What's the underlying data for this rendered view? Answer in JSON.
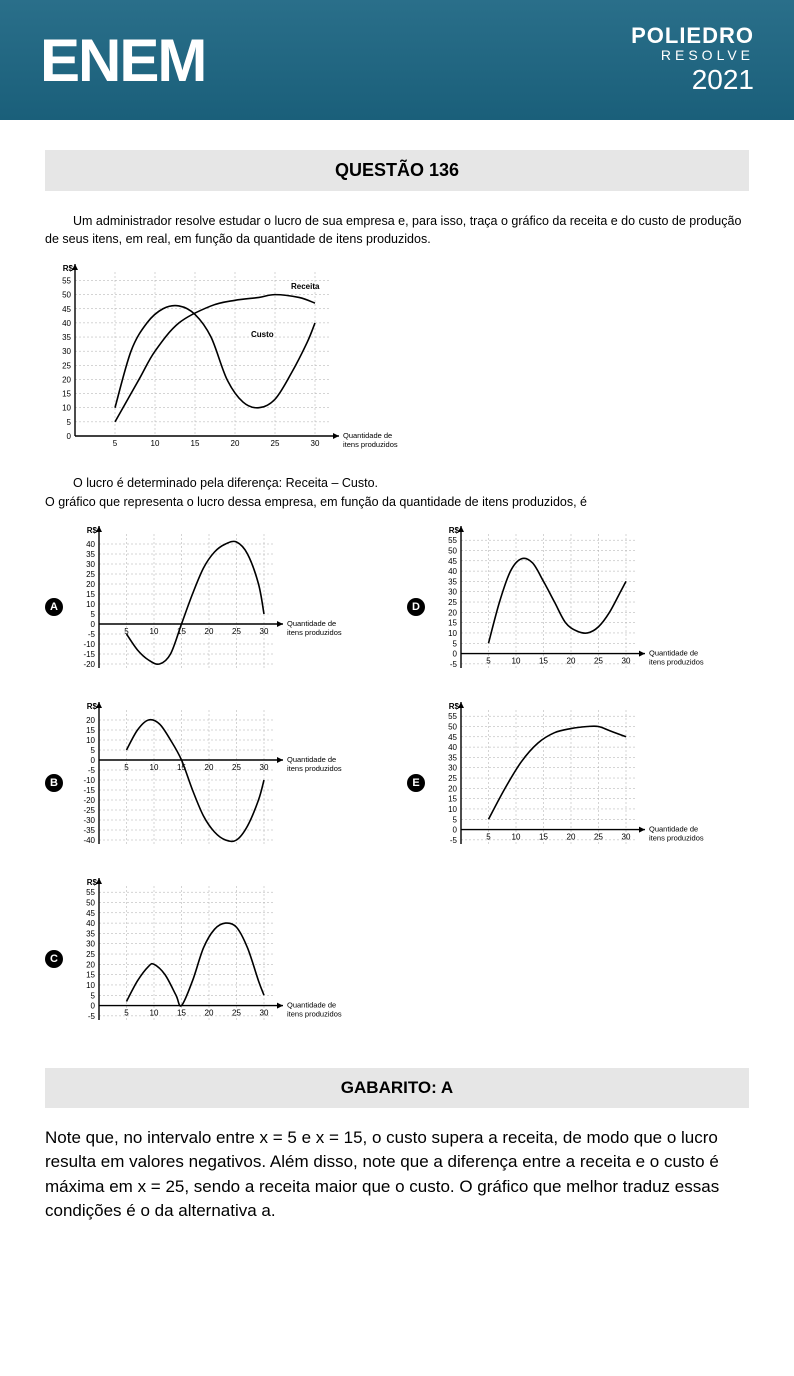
{
  "header": {
    "logo": "ENEM",
    "brand": "POLIEDRO",
    "sub": "RESOLVE",
    "year": "2021",
    "bg_color": "#1a5f7a"
  },
  "question": {
    "title": "QUESTÃO 136",
    "intro": "Um administrador resolve estudar o lucro de sua empresa e, para isso, traça o gráfico da receita e do custo de produção de seus itens, em real, em função da quantidade de itens produzidos.",
    "mid1": "O lucro é determinado pela diferença: Receita – Custo.",
    "mid2": "O gráfico que representa o lucro dessa empresa, em função da quantidade de itens produzidos, é",
    "gabarito": "GABARITO: A",
    "explanation": "Note que, no intervalo entre x = 5 e x = 15, o custo supera a receita, de modo que o lucro resulta em valores negativos. Além disso, note que a diferença entre a receita e o custo é máxima em x = 25, sendo a receita maior que o custo. O gráfico que melhor traduz essas condições é o da alternativa a."
  },
  "main_chart": {
    "type": "line",
    "ylabel": "R$",
    "xlabel": "Quantidade de itens produzidos",
    "xlim": [
      0,
      32
    ],
    "ylim": [
      0,
      58
    ],
    "xticks": [
      5,
      10,
      15,
      20,
      25,
      30
    ],
    "yticks": [
      5,
      10,
      15,
      20,
      25,
      30,
      35,
      40,
      45,
      50,
      55
    ],
    "grid_color": "#aaaaaa",
    "series": {
      "Receita": {
        "label": "Receita",
        "color": "#000",
        "points": [
          [
            5,
            5
          ],
          [
            8,
            20
          ],
          [
            10,
            30
          ],
          [
            13,
            40
          ],
          [
            17,
            46
          ],
          [
            20,
            48
          ],
          [
            23,
            49
          ],
          [
            25,
            50
          ],
          [
            28,
            49
          ],
          [
            30,
            47
          ]
        ]
      },
      "Custo": {
        "label": "Custo",
        "color": "#000",
        "points": [
          [
            5,
            10
          ],
          [
            7,
            30
          ],
          [
            9,
            40
          ],
          [
            11,
            45
          ],
          [
            13,
            46
          ],
          [
            15,
            43
          ],
          [
            17,
            35
          ],
          [
            19,
            20
          ],
          [
            21,
            12
          ],
          [
            23,
            10
          ],
          [
            25,
            13
          ],
          [
            27,
            22
          ],
          [
            29,
            33
          ],
          [
            30,
            40
          ]
        ]
      }
    }
  },
  "options": {
    "A": {
      "letter": "A",
      "type": "line",
      "ylabel": "R$",
      "xlabel": "Quantidade de itens produzidos",
      "xlim": [
        0,
        32
      ],
      "ylim": [
        -22,
        45
      ],
      "xticks": [
        5,
        10,
        15,
        20,
        25,
        30
      ],
      "yticks": [
        -20,
        -15,
        -10,
        -5,
        0,
        5,
        10,
        15,
        20,
        25,
        30,
        35,
        40
      ],
      "points": [
        [
          5,
          -5
        ],
        [
          7,
          -13
        ],
        [
          9,
          -18
        ],
        [
          11,
          -20
        ],
        [
          13,
          -15
        ],
        [
          15,
          0
        ],
        [
          17,
          15
        ],
        [
          19,
          28
        ],
        [
          21,
          36
        ],
        [
          23,
          40
        ],
        [
          25,
          41
        ],
        [
          27,
          35
        ],
        [
          29,
          20
        ],
        [
          30,
          5
        ]
      ]
    },
    "B": {
      "letter": "B",
      "type": "line",
      "ylabel": "R$",
      "xlabel": "Quantidade de itens produzidos",
      "xlim": [
        0,
        32
      ],
      "ylim": [
        -42,
        25
      ],
      "xticks": [
        5,
        10,
        15,
        20,
        25,
        30
      ],
      "yticks": [
        -40,
        -35,
        -30,
        -25,
        -20,
        -15,
        -10,
        -5,
        0,
        5,
        10,
        15,
        20
      ],
      "points": [
        [
          5,
          5
        ],
        [
          7,
          15
        ],
        [
          9,
          20
        ],
        [
          11,
          18
        ],
        [
          13,
          10
        ],
        [
          15,
          0
        ],
        [
          17,
          -15
        ],
        [
          19,
          -28
        ],
        [
          21,
          -36
        ],
        [
          23,
          -40
        ],
        [
          25,
          -40
        ],
        [
          27,
          -33
        ],
        [
          29,
          -20
        ],
        [
          30,
          -10
        ]
      ]
    },
    "C": {
      "letter": "C",
      "type": "line",
      "ylabel": "R$",
      "xlabel": "Quantidade de itens produzidos",
      "xlim": [
        0,
        32
      ],
      "ylim": [
        -7,
        58
      ],
      "xticks": [
        5,
        10,
        15,
        20,
        25,
        30
      ],
      "yticks": [
        -5,
        0,
        5,
        10,
        15,
        20,
        25,
        30,
        35,
        40,
        45,
        50,
        55
      ],
      "points": [
        [
          5,
          2
        ],
        [
          7,
          12
        ],
        [
          9,
          19
        ],
        [
          10,
          20
        ],
        [
          12,
          15
        ],
        [
          14,
          5
        ],
        [
          15,
          0
        ],
        [
          17,
          12
        ],
        [
          19,
          28
        ],
        [
          21,
          37
        ],
        [
          23,
          40
        ],
        [
          25,
          38
        ],
        [
          27,
          28
        ],
        [
          29,
          12
        ],
        [
          30,
          5
        ]
      ]
    },
    "D": {
      "letter": "D",
      "type": "line",
      "ylabel": "R$",
      "xlabel": "Quantidade de itens produzidos",
      "xlim": [
        0,
        32
      ],
      "ylim": [
        -7,
        58
      ],
      "xticks": [
        5,
        10,
        15,
        20,
        25,
        30
      ],
      "yticks": [
        -5,
        0,
        5,
        10,
        15,
        20,
        25,
        30,
        35,
        40,
        45,
        50,
        55
      ],
      "points": [
        [
          5,
          5
        ],
        [
          7,
          25
        ],
        [
          9,
          40
        ],
        [
          11,
          46
        ],
        [
          13,
          44
        ],
        [
          15,
          35
        ],
        [
          17,
          25
        ],
        [
          19,
          15
        ],
        [
          21,
          11
        ],
        [
          23,
          10
        ],
        [
          25,
          13
        ],
        [
          27,
          20
        ],
        [
          29,
          30
        ],
        [
          30,
          35
        ]
      ]
    },
    "E": {
      "letter": "E",
      "type": "line",
      "ylabel": "R$",
      "xlabel": "Quantidade de itens produzidos",
      "xlim": [
        0,
        32
      ],
      "ylim": [
        -7,
        58
      ],
      "xticks": [
        5,
        10,
        15,
        20,
        25,
        30
      ],
      "yticks": [
        -5,
        0,
        5,
        10,
        15,
        20,
        25,
        30,
        35,
        40,
        45,
        50,
        55
      ],
      "points": [
        [
          5,
          5
        ],
        [
          8,
          20
        ],
        [
          11,
          33
        ],
        [
          14,
          42
        ],
        [
          17,
          47
        ],
        [
          20,
          49
        ],
        [
          23,
          50
        ],
        [
          25,
          50
        ],
        [
          27,
          48
        ],
        [
          29,
          46
        ],
        [
          30,
          45
        ]
      ]
    }
  }
}
